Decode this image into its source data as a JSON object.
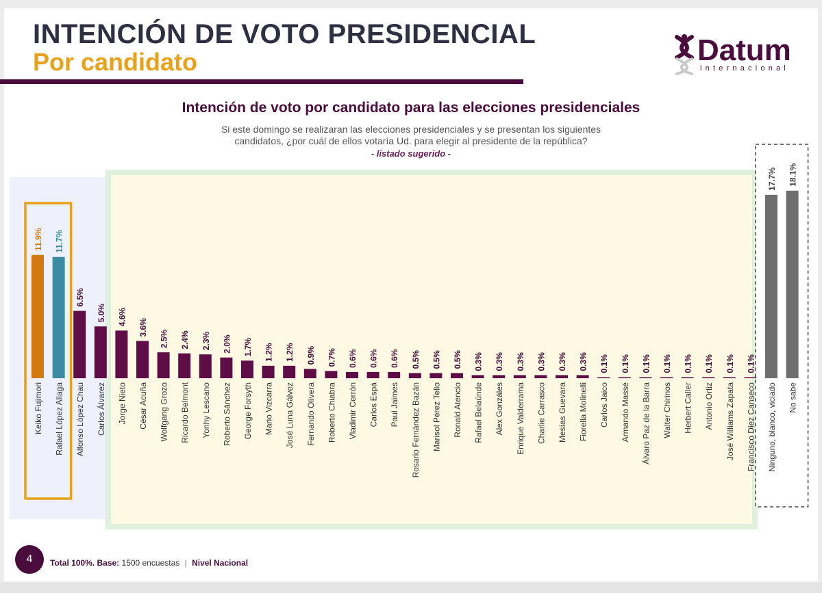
{
  "header": {
    "title": "INTENCIÓN DE VOTO PRESIDENCIAL",
    "subtitle": "Por candidato"
  },
  "logo": {
    "name": "Datum",
    "tagline": "internacional"
  },
  "colors": {
    "accent_purple": "#5e0d47",
    "accent_gold": "#e7a21a",
    "keiko_orange": "#d4790f",
    "rla_teal": "#3a8aa3",
    "neutral_gray": "#6e6e6e",
    "highlight_yellow": "#fdf9e3",
    "highlight_blue": "#eef1fb",
    "highlight_green": "#dff0dc"
  },
  "chart_data": {
    "type": "bar",
    "title": "Intención de voto por candidato para las elecciones presidenciales",
    "question": "Si este domingo se realizaran las elecciones presidenciales y se presentan los siguientes candidatos, ¿por cuál de ellos votaría Ud. para elegir al presidente de la república?",
    "note": "- listado sugerido -",
    "categories": [
      "Keiko Fujimori",
      "Rafael López Aliaga",
      "Alfonso López Chau",
      "Carlos Álvarez",
      "Jorge Nieto",
      "César Acuña",
      "Wolfgang Grozo",
      "Ricardo Belmont",
      "Yonhy Lescano",
      "Roberto Sánchez",
      "George Forsyth",
      "Mario Vizcarra",
      "José Luna Gálvez",
      "Fernando Olivera",
      "Roberto Chiabra",
      "Vladimir Cerrón",
      "Carlos Espá",
      "Paul Jaimes",
      "Rosario Fernández Bazán",
      "Marisol Pérez Tello",
      "Ronald Atencio",
      "Rafael Belaúnde",
      "Alex Gonzáles",
      "Enrique Valderrama",
      "Charlie Carrasco",
      "Mesías Guevara",
      "Fiorella Molinelli",
      "Carlos Jaico",
      "Armando Massé",
      "Álvaro Paz de la Barra",
      "Walter Chirinos",
      "Herbert Caller",
      "Antonio Ortiz",
      "José Williams Zapata",
      "Francisco Diez Canseco",
      "Ninguno, blanco, viciado",
      "No sabe"
    ],
    "values": [
      11.9,
      11.7,
      6.5,
      5.0,
      4.6,
      3.6,
      2.5,
      2.4,
      2.3,
      2.0,
      1.7,
      1.2,
      1.2,
      0.9,
      0.7,
      0.6,
      0.6,
      0.6,
      0.5,
      0.5,
      0.5,
      0.3,
      0.3,
      0.3,
      0.3,
      0.3,
      0.3,
      0.1,
      0.1,
      0.1,
      0.1,
      0.1,
      0.1,
      0.1,
      0.1,
      17.7,
      18.1
    ],
    "labels": [
      "11.9%",
      "11.7%",
      "6.5%",
      "5.0%",
      "4.6%",
      "3.6%",
      "2.5%",
      "2.4%",
      "2.3%",
      "2.0%",
      "1.7%",
      "1.2%",
      "1.2%",
      "0.9%",
      "0.7%",
      "0.6%",
      "0.6%",
      "0.6%",
      "0.5%",
      "0.5%",
      "0.5%",
      "0.3%",
      "0.3%",
      "0.3%",
      "0.3%",
      "0.3%",
      "0.3%",
      "0.1%",
      "0.1%",
      "0.1%",
      "0.1%",
      "0.1%",
      "0.1%",
      "0.1%",
      "0.1%",
      "17.7%",
      "18.1%"
    ],
    "bar_colors": [
      "#d4790f",
      "#3a8aa3",
      "#5e0d47",
      "#5e0d47",
      "#5e0d47",
      "#5e0d47",
      "#5e0d47",
      "#5e0d47",
      "#5e0d47",
      "#5e0d47",
      "#5e0d47",
      "#5e0d47",
      "#5e0d47",
      "#5e0d47",
      "#5e0d47",
      "#5e0d47",
      "#5e0d47",
      "#5e0d47",
      "#5e0d47",
      "#5e0d47",
      "#5e0d47",
      "#5e0d47",
      "#5e0d47",
      "#5e0d47",
      "#5e0d47",
      "#5e0d47",
      "#5e0d47",
      "#5e0d47",
      "#5e0d47",
      "#5e0d47",
      "#5e0d47",
      "#5e0d47",
      "#5e0d47",
      "#5e0d47",
      "#5e0d47",
      "#6e6e6e",
      "#6e6e6e"
    ],
    "label_colors": [
      "#d4790f",
      "#3a8aa3",
      "#4a0c3c",
      "#4a0c3c",
      "#4a0c3c",
      "#4a0c3c",
      "#4a0c3c",
      "#4a0c3c",
      "#4a0c3c",
      "#4a0c3c",
      "#4a0c3c",
      "#4a0c3c",
      "#4a0c3c",
      "#4a0c3c",
      "#4a0c3c",
      "#4a0c3c",
      "#4a0c3c",
      "#4a0c3c",
      "#4a0c3c",
      "#4a0c3c",
      "#4a0c3c",
      "#4a0c3c",
      "#4a0c3c",
      "#4a0c3c",
      "#4a0c3c",
      "#4a0c3c",
      "#4a0c3c",
      "#4a0c3c",
      "#4a0c3c",
      "#4a0c3c",
      "#4a0c3c",
      "#4a0c3c",
      "#4a0c3c",
      "#4a0c3c",
      "#4a0c3c",
      "#444444",
      "#444444"
    ],
    "ylim": [
      0,
      20
    ],
    "grid": false
  },
  "footer": {
    "page_number": "4",
    "total": "Total 100%.",
    "base_label": "Base:",
    "base_value": "1500 encuestas",
    "separator": "|",
    "scope": "Nivel Nacional"
  }
}
